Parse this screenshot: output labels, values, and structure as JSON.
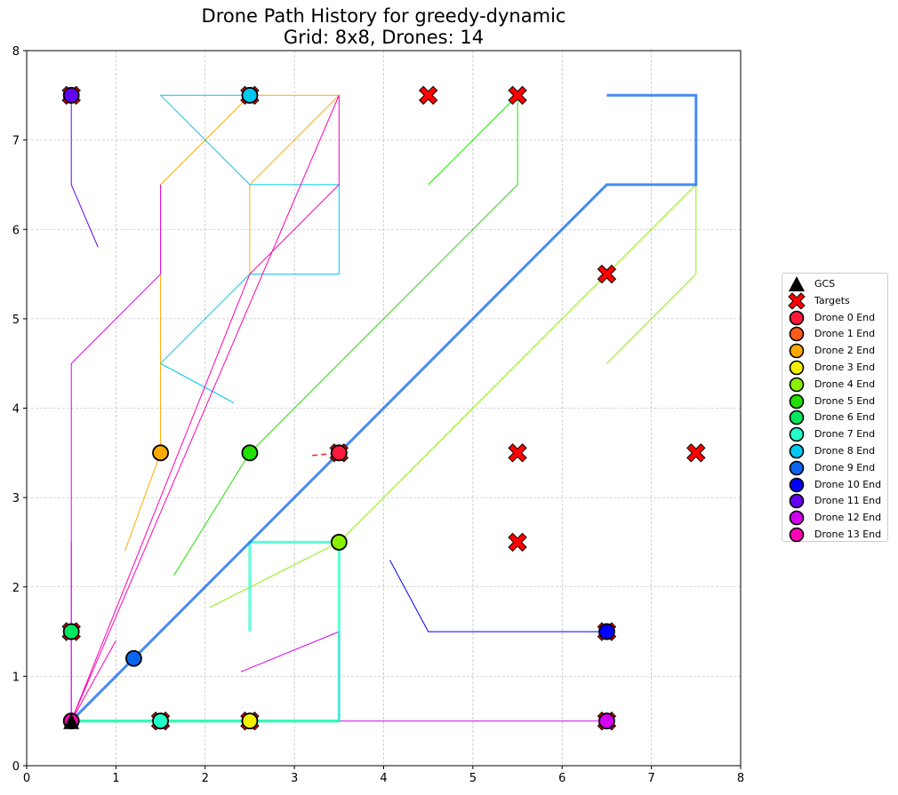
{
  "title": {
    "line1": "Drone Path History for greedy-dynamic",
    "line2": "Grid: 8x8, Drones: 14"
  },
  "chart_data": {
    "type": "scatter",
    "xlim": [
      0,
      8
    ],
    "ylim": [
      0,
      8
    ],
    "x_ticks": [
      "0",
      "1",
      "2",
      "3",
      "4",
      "5",
      "6",
      "7",
      "8"
    ],
    "y_ticks": [
      "0",
      "1",
      "2",
      "3",
      "4",
      "5",
      "6",
      "7",
      "8"
    ],
    "grid": true,
    "legend_position": "right",
    "gcs": {
      "label": "GCS",
      "x": 0.5,
      "y": 0.5,
      "color": "#000000"
    },
    "targets": {
      "label": "Targets",
      "color": "#ff0000",
      "points": [
        [
          0.5,
          7.5
        ],
        [
          2.5,
          7.5
        ],
        [
          4.5,
          7.5
        ],
        [
          5.5,
          7.5
        ],
        [
          6.5,
          5.5
        ],
        [
          3.5,
          3.5
        ],
        [
          5.5,
          3.5
        ],
        [
          7.5,
          3.5
        ],
        [
          5.5,
          2.5
        ],
        [
          0.5,
          1.5
        ],
        [
          6.5,
          1.5
        ],
        [
          1.5,
          0.5
        ],
        [
          2.5,
          0.5
        ],
        [
          6.5,
          0.5
        ]
      ]
    },
    "drones": [
      {
        "name": "Drone 0 End",
        "color": "#ff1a3c",
        "width": 1.5,
        "dashed": true,
        "end": [
          3.5,
          3.5
        ],
        "path": [
          [
            3.2,
            3.47
          ],
          [
            3.5,
            3.5
          ]
        ]
      },
      {
        "name": "Drone 1 End",
        "color": "#ff5a1a",
        "width": 1,
        "dashed": false,
        "end": null,
        "path": []
      },
      {
        "name": "Drone 2 End",
        "color": "#ffaa00",
        "width": 1,
        "dashed": false,
        "end": [
          1.5,
          3.5
        ],
        "path": [
          [
            1.1,
            2.4
          ],
          [
            1.5,
            3.5
          ],
          [
            1.5,
            6.5
          ],
          [
            2.5,
            7.5
          ],
          [
            3.5,
            7.5
          ],
          [
            2.5,
            6.5
          ],
          [
            2.5,
            5.5
          ]
        ]
      },
      {
        "name": "Drone 3 End",
        "color": "#f0f000",
        "width": 1,
        "dashed": false,
        "end": [
          2.5,
          0.5
        ],
        "path": []
      },
      {
        "name": "Drone 4 End",
        "color": "#88f000",
        "width": 1,
        "dashed": false,
        "end": [
          3.5,
          2.5
        ],
        "path": [
          [
            2.05,
            1.77
          ],
          [
            3.5,
            2.5
          ],
          [
            7.5,
            6.5
          ],
          [
            7.5,
            5.5
          ],
          [
            6.5,
            4.5
          ]
        ]
      },
      {
        "name": "Drone 5 End",
        "color": "#22e000",
        "width": 1,
        "dashed": false,
        "end": [
          2.5,
          3.5
        ],
        "path": [
          [
            1.65,
            2.13
          ],
          [
            2.5,
            3.5
          ],
          [
            5.5,
            6.5
          ],
          [
            5.5,
            7.5
          ],
          [
            4.5,
            6.5
          ]
        ]
      },
      {
        "name": "Drone 6 End",
        "color": "#00e860",
        "width": 3,
        "dashed": false,
        "end": [
          0.5,
          1.5
        ],
        "path": [
          [
            0.5,
            0.5
          ],
          [
            3.5,
            0.5
          ]
        ]
      },
      {
        "name": "Drone 7 End",
        "color": "#22ffc8",
        "width": 3,
        "dashed": false,
        "end": [
          1.5,
          0.5
        ],
        "path": [
          [
            0.5,
            0.5
          ],
          [
            3.5,
            0.5
          ],
          [
            3.5,
            2.5
          ],
          [
            2.5,
            2.5
          ],
          [
            2.5,
            1.5
          ]
        ]
      },
      {
        "name": "Drone 8 End",
        "color": "#00c8f0",
        "width": 1,
        "dashed": false,
        "end": [
          2.5,
          7.5
        ],
        "path": [
          [
            2.32,
            4.06
          ],
          [
            1.5,
            4.5
          ],
          [
            2.5,
            5.5
          ],
          [
            3.5,
            5.5
          ],
          [
            3.5,
            6.5
          ],
          [
            2.5,
            6.5
          ],
          [
            1.5,
            7.5
          ],
          [
            2.5,
            7.5
          ]
        ]
      },
      {
        "name": "Drone 9 End",
        "color": "#0a64f0",
        "width": 3,
        "dashed": false,
        "end": [
          1.2,
          1.2
        ],
        "path": [
          [
            0.5,
            0.5
          ],
          [
            6.5,
            6.5
          ],
          [
            7.5,
            6.5
          ],
          [
            7.5,
            7.5
          ],
          [
            6.5,
            7.5
          ]
        ]
      },
      {
        "name": "Drone 10 End",
        "color": "#0000ff",
        "width": 1,
        "dashed": false,
        "end": [
          6.5,
          1.5
        ],
        "path": [
          [
            4.07,
            2.3
          ],
          [
            4.5,
            1.5
          ],
          [
            6.5,
            1.5
          ]
        ]
      },
      {
        "name": "Drone 11 End",
        "color": "#6400f0",
        "width": 1,
        "dashed": false,
        "end": [
          0.5,
          7.5
        ],
        "path": [
          [
            0.8,
            5.8
          ],
          [
            0.5,
            6.5
          ],
          [
            0.5,
            7.5
          ]
        ]
      },
      {
        "name": "Drone 12 End",
        "color": "#d400f0",
        "width": 1,
        "dashed": false,
        "end": [
          6.5,
          0.5
        ],
        "path": [
          [
            0.5,
            0.5
          ],
          [
            0.5,
            4.5
          ],
          [
            1.5,
            5.5
          ],
          [
            1.5,
            6.5
          ],
          [
            1.5,
            5.5
          ]
        ]
      },
      {
        "name": "Drone 13 End",
        "color": "#ff00b4",
        "width": 1,
        "dashed": false,
        "end": [
          0.5,
          0.5
        ],
        "path": [
          [
            0.5,
            0.5
          ],
          [
            3.5,
            7.5
          ],
          [
            3.5,
            6.5
          ],
          [
            2.5,
            5.5
          ],
          [
            0.5,
            0.5
          ]
        ]
      }
    ],
    "extra_segments": [
      {
        "color": "#d400f0",
        "width": 1,
        "path": [
          [
            2.4,
            1.05
          ],
          [
            3.5,
            1.5
          ],
          [
            3.5,
            0.5
          ],
          [
            6.5,
            0.5
          ]
        ]
      },
      {
        "color": "#ff00b4",
        "width": 1,
        "path": [
          [
            0.5,
            0.5
          ],
          [
            1.0,
            1.4
          ]
        ]
      },
      {
        "color": "#d400f0",
        "width": 1,
        "path": [
          [
            0.5,
            0.5
          ],
          [
            0.5,
            2.5
          ]
        ]
      }
    ]
  }
}
